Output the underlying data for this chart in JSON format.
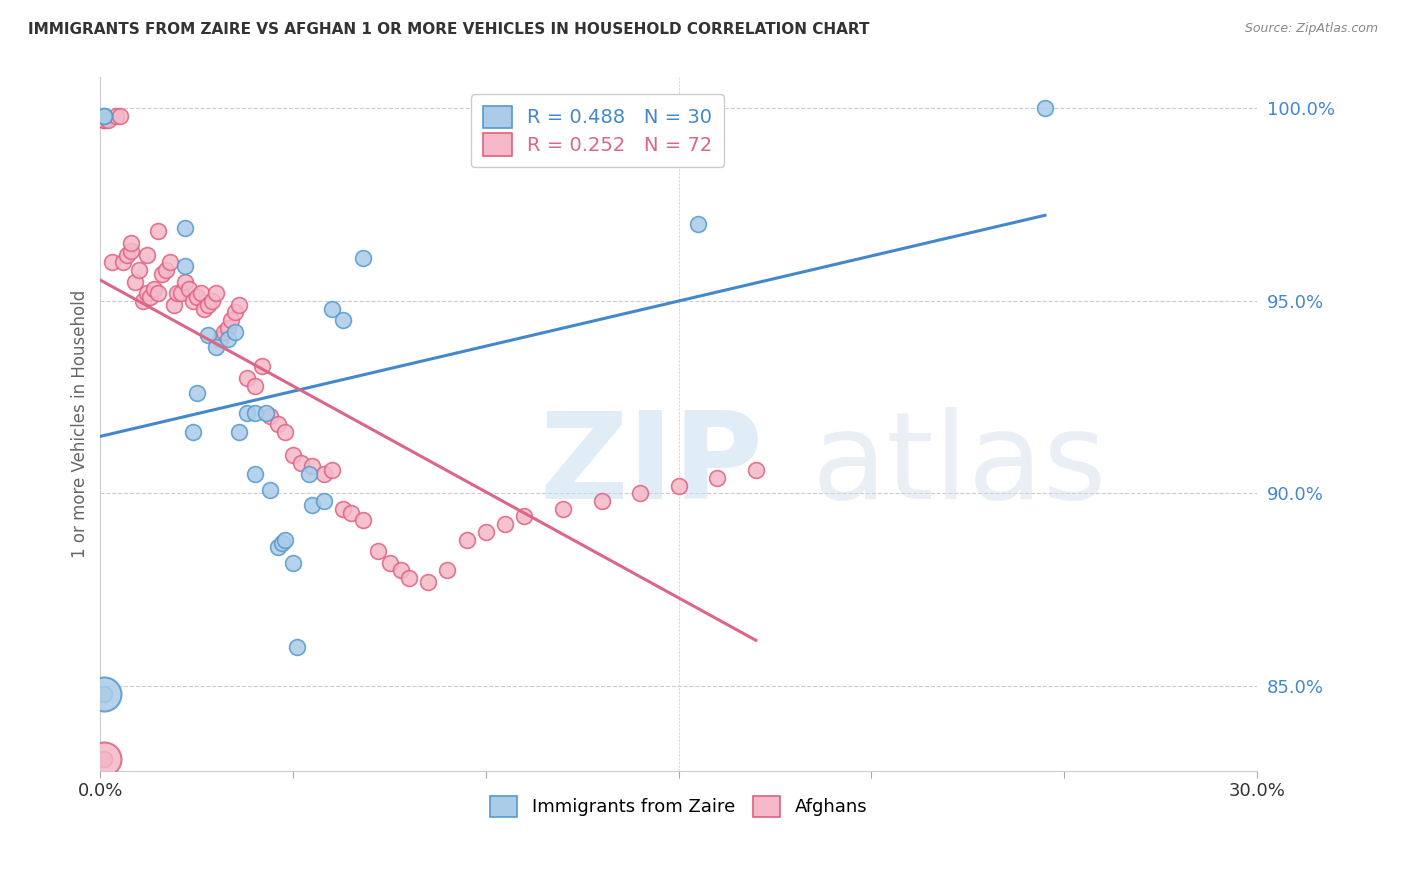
{
  "title": "IMMIGRANTS FROM ZAIRE VS AFGHAN 1 OR MORE VEHICLES IN HOUSEHOLD CORRELATION CHART",
  "source": "Source: ZipAtlas.com",
  "ylabel": "1 or more Vehicles in Household",
  "ytick_labels": [
    "85.0%",
    "90.0%",
    "95.0%",
    "100.0%"
  ],
  "ytick_values": [
    0.85,
    0.9,
    0.95,
    1.0
  ],
  "zaire_color": "#aacce8",
  "afghan_color": "#f4b8c8",
  "zaire_edge_color": "#5599cc",
  "afghan_edge_color": "#e06080",
  "zaire_line_color": "#4488cc",
  "afghan_line_color": "#dd6688",
  "xlim": [
    0.0,
    0.3
  ],
  "ylim": [
    0.828,
    1.008
  ],
  "zaire_x": [
    0.001,
    0.001,
    0.001,
    0.022,
    0.022,
    0.024,
    0.025,
    0.028,
    0.03,
    0.033,
    0.035,
    0.036,
    0.038,
    0.04,
    0.04,
    0.043,
    0.044,
    0.046,
    0.047,
    0.048,
    0.05,
    0.051,
    0.054,
    0.055,
    0.058,
    0.06,
    0.063,
    0.068,
    0.155,
    0.245
  ],
  "zaire_y": [
    0.998,
    0.998,
    0.848,
    0.969,
    0.959,
    0.916,
    0.926,
    0.941,
    0.938,
    0.94,
    0.942,
    0.916,
    0.921,
    0.921,
    0.905,
    0.921,
    0.901,
    0.886,
    0.887,
    0.888,
    0.882,
    0.86,
    0.905,
    0.897,
    0.898,
    0.948,
    0.945,
    0.961,
    0.97,
    1.0
  ],
  "afghan_x": [
    0.001,
    0.001,
    0.002,
    0.003,
    0.004,
    0.005,
    0.006,
    0.007,
    0.008,
    0.008,
    0.009,
    0.01,
    0.011,
    0.012,
    0.012,
    0.013,
    0.014,
    0.015,
    0.015,
    0.016,
    0.017,
    0.018,
    0.019,
    0.02,
    0.021,
    0.022,
    0.023,
    0.024,
    0.025,
    0.026,
    0.027,
    0.028,
    0.029,
    0.03,
    0.031,
    0.032,
    0.033,
    0.034,
    0.035,
    0.036,
    0.038,
    0.04,
    0.042,
    0.044,
    0.046,
    0.048,
    0.05,
    0.052,
    0.055,
    0.058,
    0.06,
    0.063,
    0.065,
    0.068,
    0.072,
    0.075,
    0.078,
    0.08,
    0.085,
    0.09,
    0.095,
    0.1,
    0.105,
    0.11,
    0.12,
    0.13,
    0.14,
    0.15,
    0.16,
    0.17,
    0.001,
    0.001
  ],
  "afghan_y": [
    0.997,
    0.997,
    0.997,
    0.96,
    0.998,
    0.998,
    0.96,
    0.962,
    0.963,
    0.965,
    0.955,
    0.958,
    0.95,
    0.952,
    0.962,
    0.951,
    0.953,
    0.952,
    0.968,
    0.957,
    0.958,
    0.96,
    0.949,
    0.952,
    0.952,
    0.955,
    0.953,
    0.95,
    0.951,
    0.952,
    0.948,
    0.949,
    0.95,
    0.952,
    0.94,
    0.942,
    0.943,
    0.945,
    0.947,
    0.949,
    0.93,
    0.928,
    0.933,
    0.92,
    0.918,
    0.916,
    0.91,
    0.908,
    0.907,
    0.905,
    0.906,
    0.896,
    0.895,
    0.893,
    0.885,
    0.882,
    0.88,
    0.878,
    0.877,
    0.88,
    0.888,
    0.89,
    0.892,
    0.894,
    0.896,
    0.898,
    0.9,
    0.902,
    0.904,
    0.906,
    0.831,
    0.831
  ]
}
